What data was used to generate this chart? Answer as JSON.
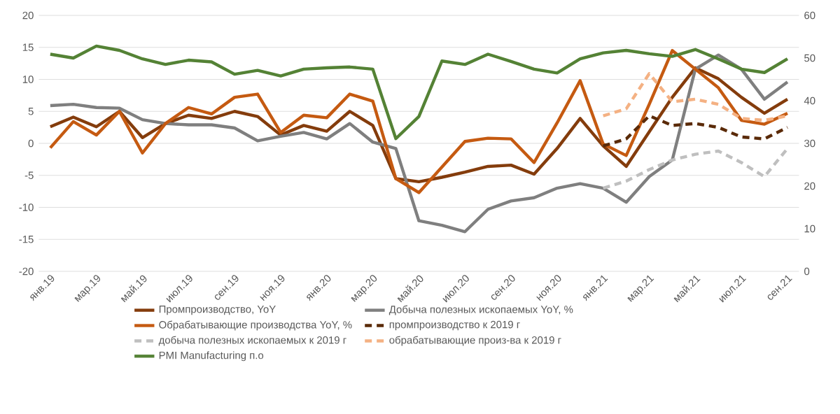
{
  "chart_data": {
    "type": "line",
    "categories": [
      "янв.19",
      null,
      "мар.19",
      null,
      "май.19",
      null,
      "июл.19",
      null,
      "сен.19",
      null,
      "ноя.19",
      null,
      "янв.20",
      null,
      "мар.20",
      null,
      "май.20",
      null,
      "июл.20",
      null,
      "сен.20",
      null,
      "ноя.20",
      null,
      "янв.21",
      null,
      "мар.21",
      null,
      "май.21",
      null,
      "июл.21",
      null,
      "сен.21"
    ],
    "ylim": [
      -20,
      20
    ],
    "yticks": [
      -20,
      -15,
      -10,
      -5,
      0,
      5,
      10,
      15,
      20
    ],
    "y2lim": [
      0,
      60
    ],
    "y2ticks": [
      0,
      10,
      20,
      30,
      40,
      50,
      60
    ],
    "grid": "y",
    "legend": "bottom",
    "series": [
      {
        "name": "Промпроизводство, YoY",
        "color": "#843c0c",
        "line_style": "solid",
        "values": [
          2.6,
          4.1,
          2.6,
          5.0,
          0.9,
          3.1,
          4.4,
          3.9,
          5.0,
          4.2,
          1.3,
          2.8,
          1.9,
          5.0,
          2.8,
          -5.5,
          -6.0,
          -5.3,
          -4.5,
          -3.6,
          -3.4,
          -4.8,
          -0.8,
          3.9,
          -0.4,
          -3.6,
          1.8,
          7.2,
          11.8,
          10.1,
          7.2,
          4.7,
          6.9
        ]
      },
      {
        "name": "Добыча полезных ископаемых YoY, %",
        "color": "#7f7f7f",
        "line_style": "solid",
        "values": [
          5.9,
          6.1,
          5.6,
          5.5,
          3.7,
          3.1,
          2.9,
          2.9,
          2.4,
          0.4,
          1.1,
          1.7,
          0.7,
          3.1,
          0.2,
          -0.8,
          -12.1,
          -12.8,
          -13.8,
          -10.3,
          -9.0,
          -8.5,
          -7.0,
          -6.3,
          -7.0,
          -9.2,
          -5.2,
          -2.6,
          11.6,
          13.8,
          11.6,
          6.9,
          9.6
        ]
      },
      {
        "name": "Обрабатывающие производства YoY, %",
        "color": "#c55a11",
        "line_style": "solid",
        "values": [
          -0.7,
          3.4,
          1.3,
          5.0,
          -1.5,
          3.1,
          5.6,
          4.6,
          7.2,
          7.7,
          1.7,
          4.4,
          4.0,
          7.7,
          6.6,
          -5.5,
          -7.7,
          -3.7,
          0.3,
          0.8,
          0.7,
          -3.0,
          3.2,
          9.8,
          -0.1,
          -1.9,
          6.1,
          14.5,
          11.6,
          8.7,
          3.6,
          3.0,
          4.7
        ]
      },
      {
        "name": "промпроизводство к 2019 г",
        "color": "#5a2a08",
        "line_style": "dashed",
        "values": [
          null,
          null,
          null,
          null,
          null,
          null,
          null,
          null,
          null,
          null,
          null,
          null,
          null,
          null,
          null,
          null,
          null,
          null,
          null,
          null,
          null,
          null,
          null,
          null,
          -0.4,
          0.7,
          4.3,
          2.8,
          3.1,
          2.5,
          1.0,
          0.7,
          2.5
        ]
      },
      {
        "name": "добыча полезных ископаемых к 2019 г",
        "color": "#bfbfbf",
        "line_style": "dashed",
        "values": [
          null,
          null,
          null,
          null,
          null,
          null,
          null,
          null,
          null,
          null,
          null,
          null,
          null,
          null,
          null,
          null,
          null,
          null,
          null,
          null,
          null,
          null,
          null,
          null,
          -7.0,
          -5.9,
          -4.1,
          -2.6,
          -1.7,
          -1.2,
          -3.0,
          -5.2,
          -0.8
        ]
      },
      {
        "name": "обрабатывающие произ-ва к 2019 г",
        "color": "#f4b183",
        "line_style": "dashed",
        "values": [
          null,
          null,
          null,
          null,
          null,
          null,
          null,
          null,
          null,
          null,
          null,
          null,
          null,
          null,
          null,
          null,
          null,
          null,
          null,
          null,
          null,
          null,
          null,
          null,
          4.3,
          5.4,
          10.9,
          6.5,
          6.9,
          6.1,
          3.9,
          3.6,
          4.3
        ]
      },
      {
        "name": "PMI Manufacturing п.о",
        "color": "#548235",
        "line_style": "solid",
        "axis": "y2",
        "values": [
          50.9,
          50.0,
          52.8,
          51.8,
          49.8,
          48.5,
          49.5,
          49.1,
          46.2,
          47.1,
          45.8,
          47.4,
          47.7,
          47.9,
          47.4,
          31.1,
          36.3,
          49.3,
          48.5,
          50.9,
          49.2,
          47.4,
          46.5,
          49.8,
          51.2,
          51.8,
          51.0,
          50.4,
          52.0,
          49.8,
          47.4,
          46.6,
          49.8
        ]
      }
    ]
  }
}
